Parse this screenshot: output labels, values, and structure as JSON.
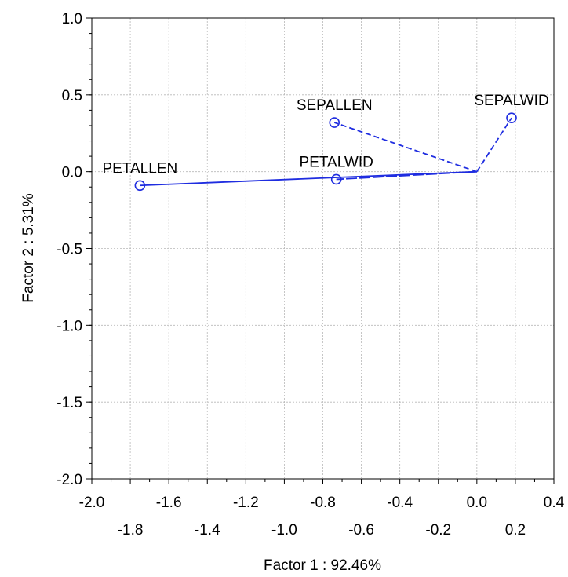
{
  "chart_data": {
    "type": "scatter",
    "subtype": "factor-loading-plot",
    "xlabel": "Factor 1 : 92.46%",
    "ylabel": "Factor 2 :  5.31%",
    "xlim": [
      -2.0,
      0.4
    ],
    "ylim": [
      -2.0,
      1.0
    ],
    "x_ticks_major": [
      "-2.0",
      "-1.6",
      "-1.2",
      "-0.8",
      "-0.4",
      "0.0",
      "0.4"
    ],
    "x_ticks_minor": [
      "-1.8",
      "-1.4",
      "-1.0",
      "-0.6",
      "-0.2",
      "0.2"
    ],
    "y_ticks": [
      "1.0",
      "0.5",
      "0.0",
      "-0.5",
      "-1.0",
      "-1.5",
      "-2.0"
    ],
    "grid": true,
    "color": "#1f2de0",
    "points": [
      {
        "label": "PETALLEN",
        "x": -1.75,
        "y": -0.09,
        "line": "solid"
      },
      {
        "label": "PETALWID",
        "x": -0.73,
        "y": -0.05,
        "line": "long-dash"
      },
      {
        "label": "SEPALLEN",
        "x": -0.74,
        "y": 0.32,
        "line": "dash"
      },
      {
        "label": "SEPALWID",
        "x": 0.18,
        "y": 0.35,
        "line": "dash"
      }
    ]
  }
}
